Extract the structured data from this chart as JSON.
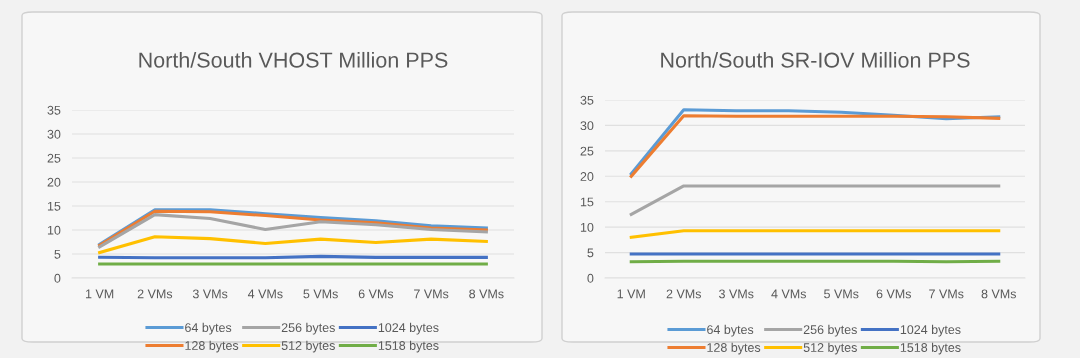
{
  "chart_data": [
    {
      "type": "line",
      "title": "North/South VHOST Million PPS",
      "categories": [
        "1 VM",
        "2 VMs",
        "3 VMs",
        "4 VMs",
        "5 VMs",
        "6 VMs",
        "7 VMs",
        "8 VMs"
      ],
      "ylim": [
        0,
        35
      ],
      "yticks": [
        0,
        5,
        10,
        15,
        20,
        25,
        30,
        35
      ],
      "grid": "y",
      "legend": "bottom",
      "marker": "none",
      "line_style": "solid",
      "series": [
        {
          "name": "64 bytes",
          "color": "#5b9bd5",
          "values": [
            7.0,
            14.2,
            14.2,
            13.4,
            12.6,
            11.9,
            10.9,
            10.4
          ]
        },
        {
          "name": "128 bytes",
          "color": "#ed7d31",
          "values": [
            6.8,
            13.9,
            13.8,
            13.0,
            12.1,
            11.5,
            10.4,
            10.0
          ]
        },
        {
          "name": "256 bytes",
          "color": "#a5a5a5",
          "values": [
            6.5,
            13.2,
            12.4,
            10.1,
            11.7,
            11.1,
            10.1,
            9.6
          ]
        },
        {
          "name": "512 bytes",
          "color": "#ffc000",
          "values": [
            5.3,
            8.6,
            8.2,
            7.2,
            8.1,
            7.4,
            8.1,
            7.6
          ]
        },
        {
          "name": "1024 bytes",
          "color": "#4472c4",
          "values": [
            4.3,
            4.2,
            4.2,
            4.2,
            4.5,
            4.3,
            4.3,
            4.3
          ]
        },
        {
          "name": "1518 bytes",
          "color": "#70ad47",
          "values": [
            2.9,
            2.9,
            2.9,
            2.9,
            2.9,
            2.9,
            2.9,
            2.9
          ]
        }
      ]
    },
    {
      "type": "line",
      "title": "North/South SR-IOV Million PPS",
      "categories": [
        "1 VM",
        "2 VMs",
        "3 VMs",
        "4 VMs",
        "5 VMs",
        "6 VMs",
        "7 VMs",
        "8 VMs"
      ],
      "ylim": [
        0,
        35
      ],
      "yticks": [
        0,
        5,
        10,
        15,
        20,
        25,
        30,
        35
      ],
      "grid": "y",
      "legend": "bottom",
      "marker": "none",
      "line_style": "solid",
      "series": [
        {
          "name": "64 bytes",
          "color": "#5b9bd5",
          "values": [
            20.5,
            33.1,
            32.9,
            32.9,
            32.6,
            32.0,
            31.3,
            31.7
          ]
        },
        {
          "name": "128 bytes",
          "color": "#ed7d31",
          "values": [
            20.0,
            31.9,
            31.8,
            31.8,
            31.8,
            31.8,
            31.7,
            31.4
          ]
        },
        {
          "name": "256 bytes",
          "color": "#a5a5a5",
          "values": [
            12.5,
            18.1,
            18.1,
            18.1,
            18.1,
            18.1,
            18.1,
            18.1
          ]
        },
        {
          "name": "512 bytes",
          "color": "#ffc000",
          "values": [
            8.0,
            9.3,
            9.3,
            9.3,
            9.3,
            9.3,
            9.3,
            9.3
          ]
        },
        {
          "name": "1024 bytes",
          "color": "#4472c4",
          "values": [
            4.7,
            4.7,
            4.7,
            4.7,
            4.7,
            4.7,
            4.7,
            4.7
          ]
        },
        {
          "name": "1518 bytes",
          "color": "#70ad47",
          "values": [
            3.2,
            3.3,
            3.3,
            3.3,
            3.3,
            3.3,
            3.2,
            3.3
          ]
        }
      ]
    }
  ]
}
